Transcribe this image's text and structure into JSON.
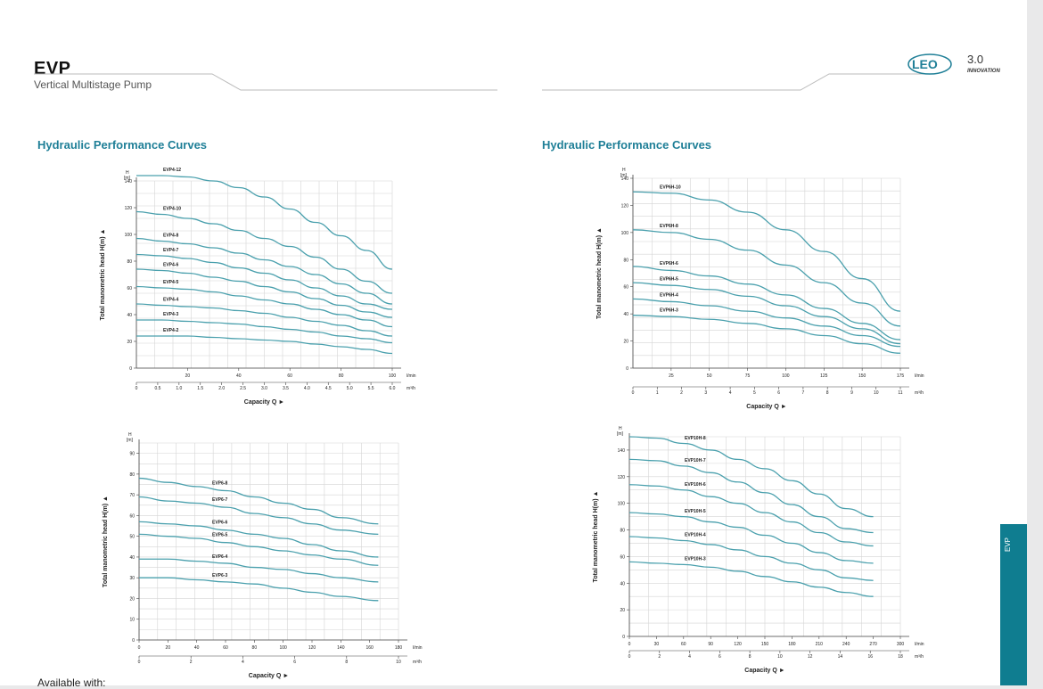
{
  "header": {
    "title": "EVP",
    "subtitle": "Vertical Multistage Pump",
    "logo_text": "LEO",
    "logo_version": "3.0",
    "logo_tagline": "INNOVATION"
  },
  "side_tab": {
    "label": "EVP"
  },
  "footer": {
    "text": "Available with:"
  },
  "colors": {
    "curve": "#4aa0ad",
    "accent": "#1f7f97",
    "tab": "#0f7d90",
    "grid": "#d5d5d5"
  },
  "sections": [
    {
      "title": "Hydraulic Performance Curves"
    },
    {
      "title": "Hydraulic Performance Curves"
    }
  ],
  "chart_data": [
    {
      "type": "line",
      "h_unit": "H",
      "h_unit2": "[m]",
      "ylabel": "Total manometric head H(m)",
      "xlabel": "Capacity Q",
      "x_unit": "l/min",
      "x2_unit": "m³/h",
      "xlim": [
        0,
        100
      ],
      "ylim": [
        0,
        140
      ],
      "x_ticks": [
        "20",
        "40",
        "60",
        "80",
        "100"
      ],
      "y_ticks": [
        "0",
        "20",
        "40",
        "60",
        "80",
        "100",
        "120",
        "140"
      ],
      "x2_ticks": [
        "0",
        "0.5",
        "1.0",
        "1.5",
        "2.0",
        "2.5",
        "3.0",
        "3.5",
        "4.0",
        "4.5",
        "5.0",
        "5.5",
        "6.0"
      ],
      "x": [
        0,
        10,
        20,
        30,
        40,
        50,
        60,
        70,
        80,
        90,
        100
      ],
      "series": [
        {
          "name": "EVP4-12",
          "values": [
            144,
            144,
            143,
            140,
            135,
            128,
            119,
            109,
            99,
            88,
            74
          ]
        },
        {
          "name": "EVP4-10",
          "values": [
            117,
            115,
            112,
            108,
            103,
            97,
            91,
            83,
            74,
            65,
            56
          ]
        },
        {
          "name": "EVP4-8",
          "values": [
            97,
            95,
            93,
            90,
            86,
            81,
            76,
            70,
            63,
            56,
            48
          ]
        },
        {
          "name": "EVP4-7",
          "values": [
            85,
            84,
            82,
            79,
            75,
            71,
            66,
            60,
            54,
            48,
            44
          ]
        },
        {
          "name": "EVP4-6",
          "values": [
            74,
            73,
            71,
            68,
            65,
            61,
            57,
            52,
            47,
            42,
            38
          ]
        },
        {
          "name": "EVP4-5",
          "values": [
            61,
            60,
            59,
            57,
            54,
            51,
            48,
            44,
            40,
            36,
            31
          ]
        },
        {
          "name": "EVP4-4",
          "values": [
            48,
            47,
            46,
            45,
            43,
            41,
            38,
            35,
            32,
            28,
            24
          ]
        },
        {
          "name": "EVP4-3",
          "values": [
            36,
            36,
            35,
            34,
            33,
            31,
            29,
            27,
            24,
            22,
            19
          ]
        },
        {
          "name": "EVP4-2",
          "values": [
            24,
            24,
            24,
            23,
            22,
            21,
            20,
            18,
            16,
            14,
            11
          ]
        }
      ]
    },
    {
      "type": "line",
      "h_unit": "H",
      "h_unit2": "[m]",
      "ylabel": "Total manometric head H(m)",
      "xlabel": "Capacity Q",
      "x_unit": "l/min",
      "x2_unit": "m³/h",
      "xlim": [
        0,
        175
      ],
      "ylim": [
        0,
        140
      ],
      "x_ticks": [
        "25",
        "50",
        "75",
        "100",
        "125",
        "150",
        "175"
      ],
      "y_ticks": [
        "0",
        "20",
        "40",
        "60",
        "80",
        "100",
        "120",
        "140"
      ],
      "x2_ticks": [
        "0",
        "1",
        "2",
        "3",
        "4",
        "5",
        "6",
        "7",
        "8",
        "9",
        "10",
        "11"
      ],
      "x": [
        0,
        25,
        50,
        75,
        100,
        125,
        150,
        175
      ],
      "series": [
        {
          "name": "EVP6H-10",
          "values": [
            130,
            129,
            124,
            115,
            102,
            86,
            66,
            42
          ]
        },
        {
          "name": "EVP6H-8",
          "values": [
            102,
            100,
            95,
            87,
            76,
            63,
            48,
            31
          ]
        },
        {
          "name": "EVP6H-6",
          "values": [
            75,
            72,
            68,
            62,
            54,
            44,
            33,
            21
          ]
        },
        {
          "name": "EVP6H-5",
          "values": [
            63,
            61,
            58,
            53,
            46,
            38,
            29,
            18
          ]
        },
        {
          "name": "EVP6H-4",
          "values": [
            51,
            49,
            46,
            42,
            37,
            31,
            24,
            16
          ]
        },
        {
          "name": "EVP6H-3",
          "values": [
            39,
            38,
            36,
            33,
            29,
            24,
            18,
            11
          ]
        }
      ]
    },
    {
      "type": "line",
      "h_unit": "H",
      "h_unit2": "[m]",
      "ylabel": "Total manometric head H(m)",
      "xlabel": "Capacity Q",
      "x_unit": "l/min",
      "x2_unit": "m³/h",
      "xlim": [
        0,
        180
      ],
      "ylim": [
        0,
        95
      ],
      "x_ticks": [
        "0",
        "20",
        "40",
        "60",
        "80",
        "100",
        "120",
        "140",
        "160",
        "180"
      ],
      "y_ticks": [
        "0",
        "10",
        "20",
        "30",
        "40",
        "50",
        "60",
        "70",
        "80",
        "90"
      ],
      "x2_ticks": [
        "0",
        "2",
        "4",
        "6",
        "8",
        "10"
      ],
      "x": [
        0,
        20,
        40,
        60,
        80,
        100,
        120,
        140,
        166
      ],
      "series": [
        {
          "name": "EVP6-8",
          "values": [
            78,
            76,
            74,
            72,
            69,
            66,
            63,
            59,
            56
          ]
        },
        {
          "name": "EVP6-7",
          "values": [
            69,
            67,
            66,
            64,
            61,
            59,
            56,
            53,
            51
          ]
        },
        {
          "name": "EVP6-6",
          "values": [
            57,
            56,
            55,
            53,
            51,
            49,
            46,
            43,
            40
          ]
        },
        {
          "name": "EVP6-5",
          "values": [
            51,
            50,
            49,
            47,
            45,
            43,
            41,
            39,
            36
          ]
        },
        {
          "name": "EVP6-4",
          "values": [
            39,
            39,
            38,
            37,
            35,
            34,
            32,
            30,
            28
          ]
        },
        {
          "name": "EVP6-3",
          "values": [
            30,
            30,
            29,
            28,
            27,
            25,
            23,
            21,
            19
          ]
        }
      ]
    },
    {
      "type": "line",
      "h_unit": "H",
      "h_unit2": "[m]",
      "ylabel": "Total manometric head H(m)",
      "xlabel": "Capacity Q",
      "x_unit": "l/min",
      "x2_unit": "m³/h",
      "xlim": [
        0,
        300
      ],
      "ylim": [
        0,
        150
      ],
      "x_ticks": [
        "0",
        "30",
        "60",
        "90",
        "120",
        "150",
        "180",
        "210",
        "240",
        "270",
        "300"
      ],
      "y_ticks": [
        "0",
        "20",
        "40",
        "60",
        "80",
        "100",
        "120",
        "140"
      ],
      "x2_ticks": [
        "0",
        "2",
        "4",
        "6",
        "8",
        "10",
        "12",
        "14",
        "16",
        "18"
      ],
      "x": [
        0,
        30,
        60,
        90,
        120,
        150,
        180,
        210,
        240,
        270
      ],
      "series": [
        {
          "name": "EVP10H-8",
          "values": [
            150,
            149,
            145,
            140,
            133,
            126,
            117,
            107,
            96,
            90
          ]
        },
        {
          "name": "EVP10H-7",
          "values": [
            133,
            132,
            128,
            123,
            116,
            108,
            99,
            90,
            81,
            78
          ]
        },
        {
          "name": "EVP10H-6",
          "values": [
            114,
            113,
            110,
            105,
            100,
            93,
            86,
            78,
            71,
            68
          ]
        },
        {
          "name": "EVP10H-5",
          "values": [
            93,
            92,
            90,
            86,
            82,
            76,
            70,
            63,
            57,
            55
          ]
        },
        {
          "name": "EVP10H-4",
          "values": [
            75,
            74,
            72,
            69,
            65,
            60,
            55,
            50,
            44,
            42
          ]
        },
        {
          "name": "EVP10H-3",
          "values": [
            56,
            55,
            54,
            52,
            49,
            45,
            41,
            37,
            33,
            30
          ]
        }
      ]
    }
  ]
}
